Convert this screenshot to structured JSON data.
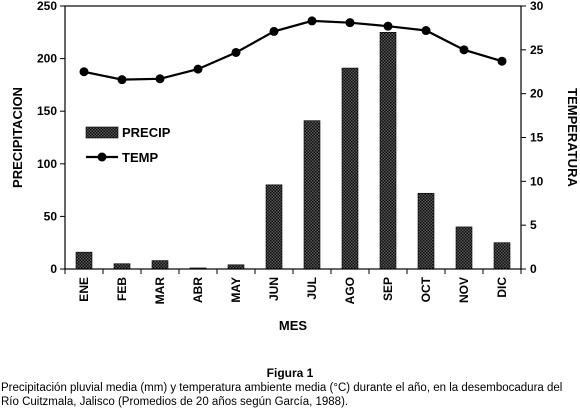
{
  "chart_data": {
    "type": "bar",
    "categories": [
      "ENE",
      "FEB",
      "MAR",
      "ABR",
      "MAY",
      "JUN",
      "JUL",
      "AGO",
      "SEP",
      "OCT",
      "NOV",
      "DIC"
    ],
    "series": [
      {
        "name": "PRECIP",
        "type": "bar",
        "axis": "left",
        "values": [
          16,
          5,
          8,
          1,
          4,
          80,
          141,
          191,
          225,
          72,
          40,
          25
        ]
      },
      {
        "name": "TEMP",
        "type": "line",
        "axis": "right",
        "values": [
          22.5,
          21.6,
          21.7,
          22.8,
          24.7,
          27.1,
          28.3,
          28.1,
          27.7,
          27.2,
          25.0,
          23.7
        ]
      }
    ],
    "xlabel": "MES",
    "ylabel": "PRECIPITACION",
    "y2label": "TEMPERATURA",
    "ylim": [
      0,
      250
    ],
    "y2lim": [
      0,
      30
    ],
    "yticks": [
      0,
      50,
      100,
      150,
      200,
      250
    ],
    "y2ticks": [
      0,
      5,
      10,
      15,
      20,
      25,
      30
    ],
    "legend_position": "upper-left",
    "grid": false
  },
  "caption": {
    "title": "Figura 1",
    "text": "Precipitación pluvial media (mm) y temperatura ambiente media (°C) durante el año, en la desembocadura del Río Cuitzmala, Jalisco (Promedios de 20 años según García, 1988)."
  },
  "colors": {
    "axis": "#000000",
    "bar_fill": "#3a3a3a",
    "line": "#000000"
  }
}
